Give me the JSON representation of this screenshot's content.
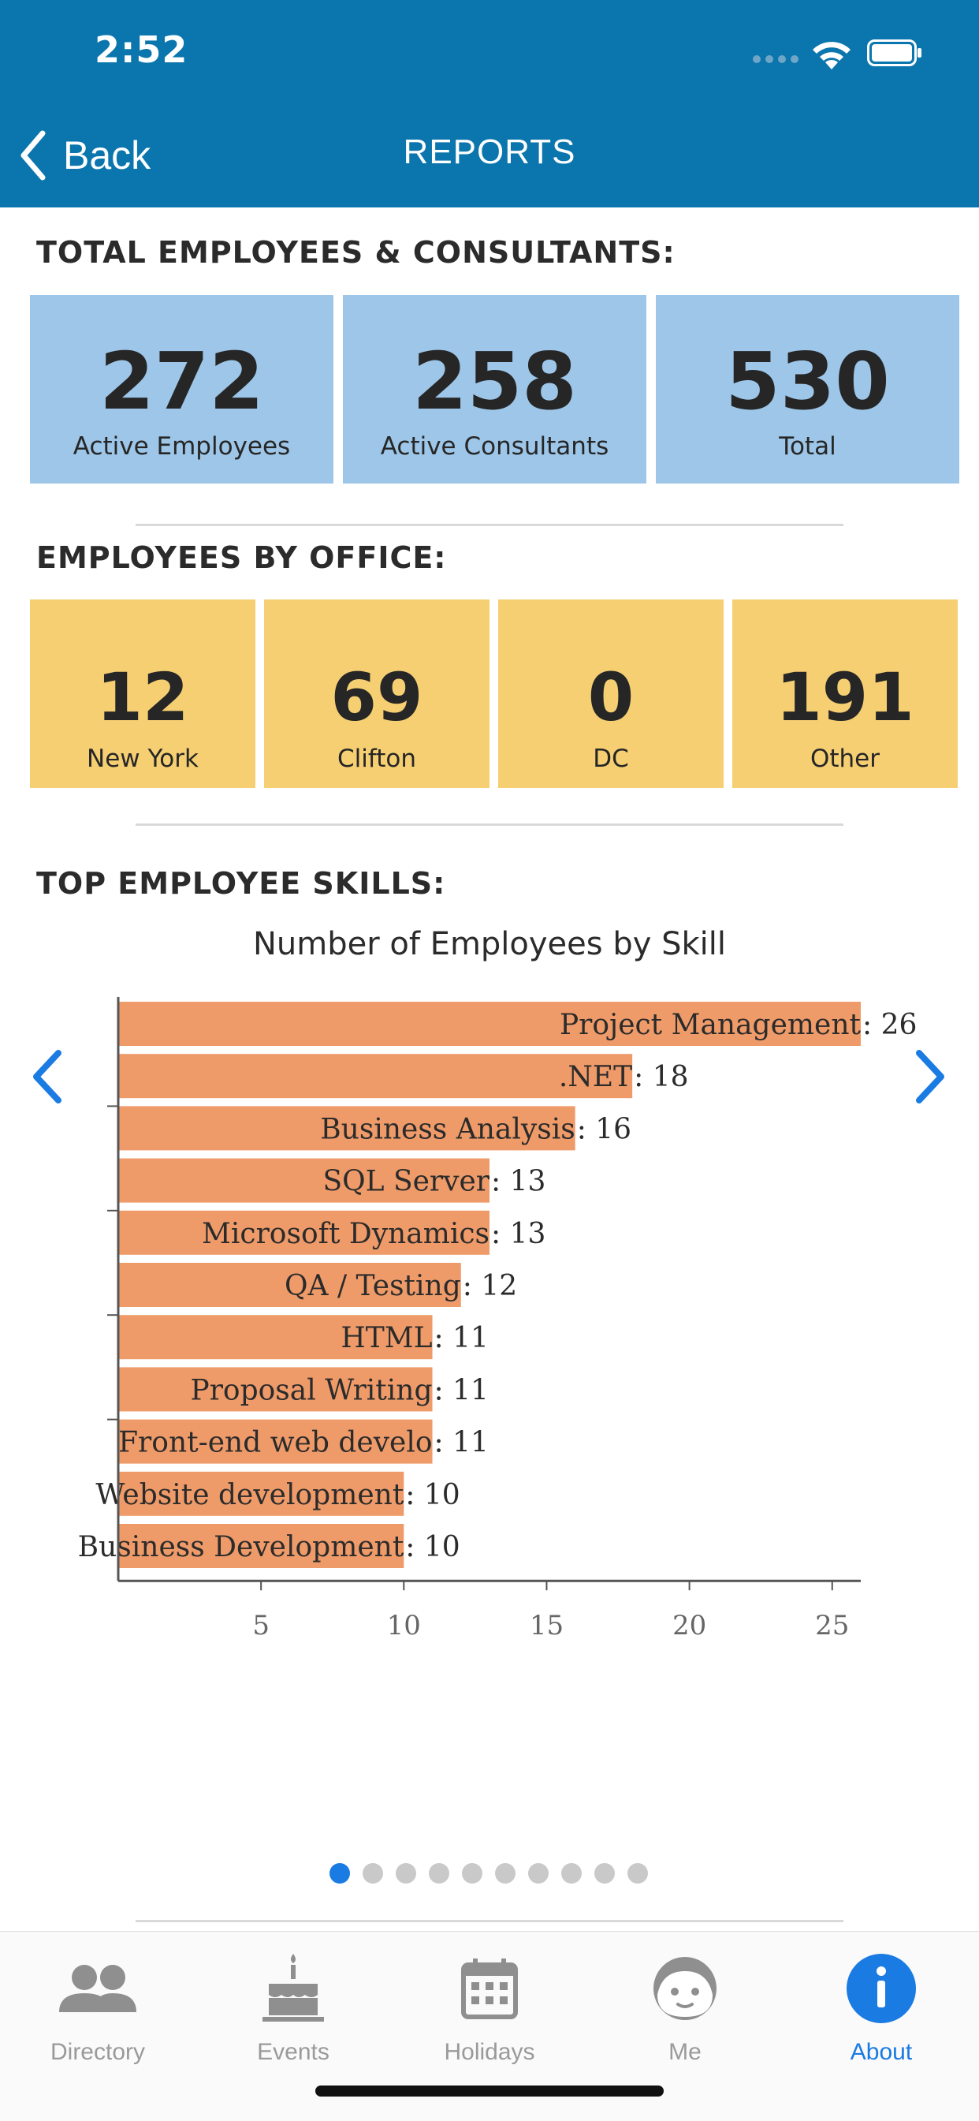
{
  "status_bar": {
    "time": "2:52"
  },
  "nav": {
    "back_label": "Back",
    "title": "REPORTS"
  },
  "totals": {
    "title": "TOTAL EMPLOYEES & CONSULTANTS:",
    "tiles": [
      {
        "value": "272",
        "label": "Active Employees"
      },
      {
        "value": "258",
        "label": "Active Consultants"
      },
      {
        "value": "530",
        "label": "Total"
      }
    ]
  },
  "offices": {
    "title": "EMPLOYEES BY OFFICE:",
    "tiles": [
      {
        "value": "12",
        "label": "New York"
      },
      {
        "value": "69",
        "label": "Clifton"
      },
      {
        "value": "0",
        "label": "DC"
      },
      {
        "value": "191",
        "label": "Other"
      }
    ]
  },
  "skills": {
    "title": "TOP EMPLOYEE SKILLS:",
    "carousel": {
      "pages": 10,
      "active_page": 1
    }
  },
  "chart_data": {
    "type": "bar",
    "orientation": "horizontal",
    "title": "Number of Employees by Skill",
    "categories": [
      "Project Management",
      ".NET",
      "Business Analysis",
      "SQL Server",
      "Microsoft Dynamics",
      "QA / Testing",
      "HTML",
      "Proposal Writing",
      "Front-end web develo",
      "Website development",
      "Business Development"
    ],
    "values": [
      26,
      18,
      16,
      13,
      13,
      12,
      11,
      11,
      11,
      10,
      10
    ],
    "xticks": [
      5,
      10,
      15,
      20,
      25
    ],
    "xlim": [
      0,
      26
    ],
    "bar_color": "#ef9b69"
  },
  "tabbar": {
    "items": [
      {
        "label": "Directory",
        "icon": "people-icon"
      },
      {
        "label": "Events",
        "icon": "cake-icon"
      },
      {
        "label": "Holidays",
        "icon": "calendar-icon"
      },
      {
        "label": "Me",
        "icon": "face-icon"
      },
      {
        "label": "About",
        "icon": "info-icon"
      }
    ],
    "active": "About"
  },
  "colors": {
    "header": "#0b76ad",
    "tile_blue": "#9dc6e8",
    "tile_yellow": "#f6cf72",
    "accent": "#1a7be3"
  }
}
